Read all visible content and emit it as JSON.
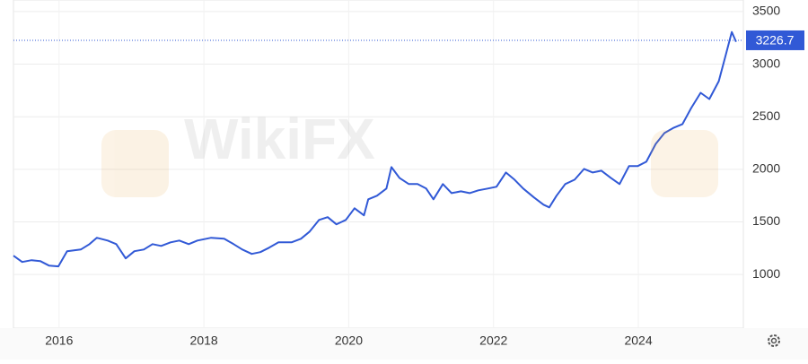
{
  "chart_data": {
    "type": "line",
    "watermark": "WikiFX",
    "x": [
      2015.37,
      2015.49,
      2015.62,
      2015.74,
      2015.86,
      2015.99,
      2016.11,
      2016.3,
      2016.42,
      2016.52,
      2016.67,
      2016.79,
      2016.92,
      2017.04,
      2017.17,
      2017.29,
      2017.41,
      2017.54,
      2017.66,
      2017.79,
      2017.91,
      2018.1,
      2018.28,
      2018.41,
      2018.53,
      2018.66,
      2018.78,
      2018.9,
      2019.03,
      2019.21,
      2019.34,
      2019.46,
      2019.59,
      2019.71,
      2019.83,
      2019.96,
      2020.08,
      2020.21,
      2020.27,
      2020.39,
      2020.52,
      2020.59,
      2020.7,
      2020.83,
      2020.95,
      2021.07,
      2021.17,
      2021.3,
      2021.42,
      2021.55,
      2021.67,
      2021.79,
      2021.92,
      2022.04,
      2022.17,
      2022.29,
      2022.41,
      2022.56,
      2022.69,
      2022.77,
      2022.87,
      2022.99,
      2023.12,
      2023.25,
      2023.37,
      2023.49,
      2023.62,
      2023.74,
      2023.87,
      2023.99,
      2024.11,
      2024.24,
      2024.36,
      2024.49,
      2024.61,
      2024.73,
      2024.86,
      2024.98,
      2025.11,
      2025.21,
      2025.29,
      2025.35
    ],
    "series": [
      {
        "color": "#3159d6",
        "values": [
          1179,
          1119,
          1136,
          1128,
          1085,
          1077,
          1221,
          1238,
          1289,
          1349,
          1323,
          1289,
          1153,
          1221,
          1238,
          1289,
          1272,
          1306,
          1323,
          1289,
          1323,
          1349,
          1340,
          1289,
          1238,
          1196,
          1213,
          1255,
          1306,
          1306,
          1340,
          1408,
          1519,
          1545,
          1477,
          1519,
          1630,
          1562,
          1715,
          1749,
          1817,
          2021,
          1919,
          1860,
          1860,
          1817,
          1715,
          1860,
          1774,
          1791,
          1774,
          1800,
          1817,
          1834,
          1970,
          1902,
          1817,
          1732,
          1664,
          1638,
          1749,
          1860,
          1902,
          2004,
          1970,
          1987,
          1919,
          1860,
          2030,
          2030,
          2072,
          2242,
          2345,
          2396,
          2430,
          2583,
          2728,
          2668,
          2838,
          3094,
          3306,
          3213
        ]
      }
    ],
    "last_value": 3226.7,
    "xlim": [
      2015.37,
      2025.45
    ],
    "xticks": [
      2016,
      2018,
      2020,
      2022,
      2024
    ],
    "ylim": [
      490,
      3610
    ],
    "yticks": [
      1000,
      1500,
      2000,
      2500,
      3000,
      3500
    ],
    "grid": true
  }
}
